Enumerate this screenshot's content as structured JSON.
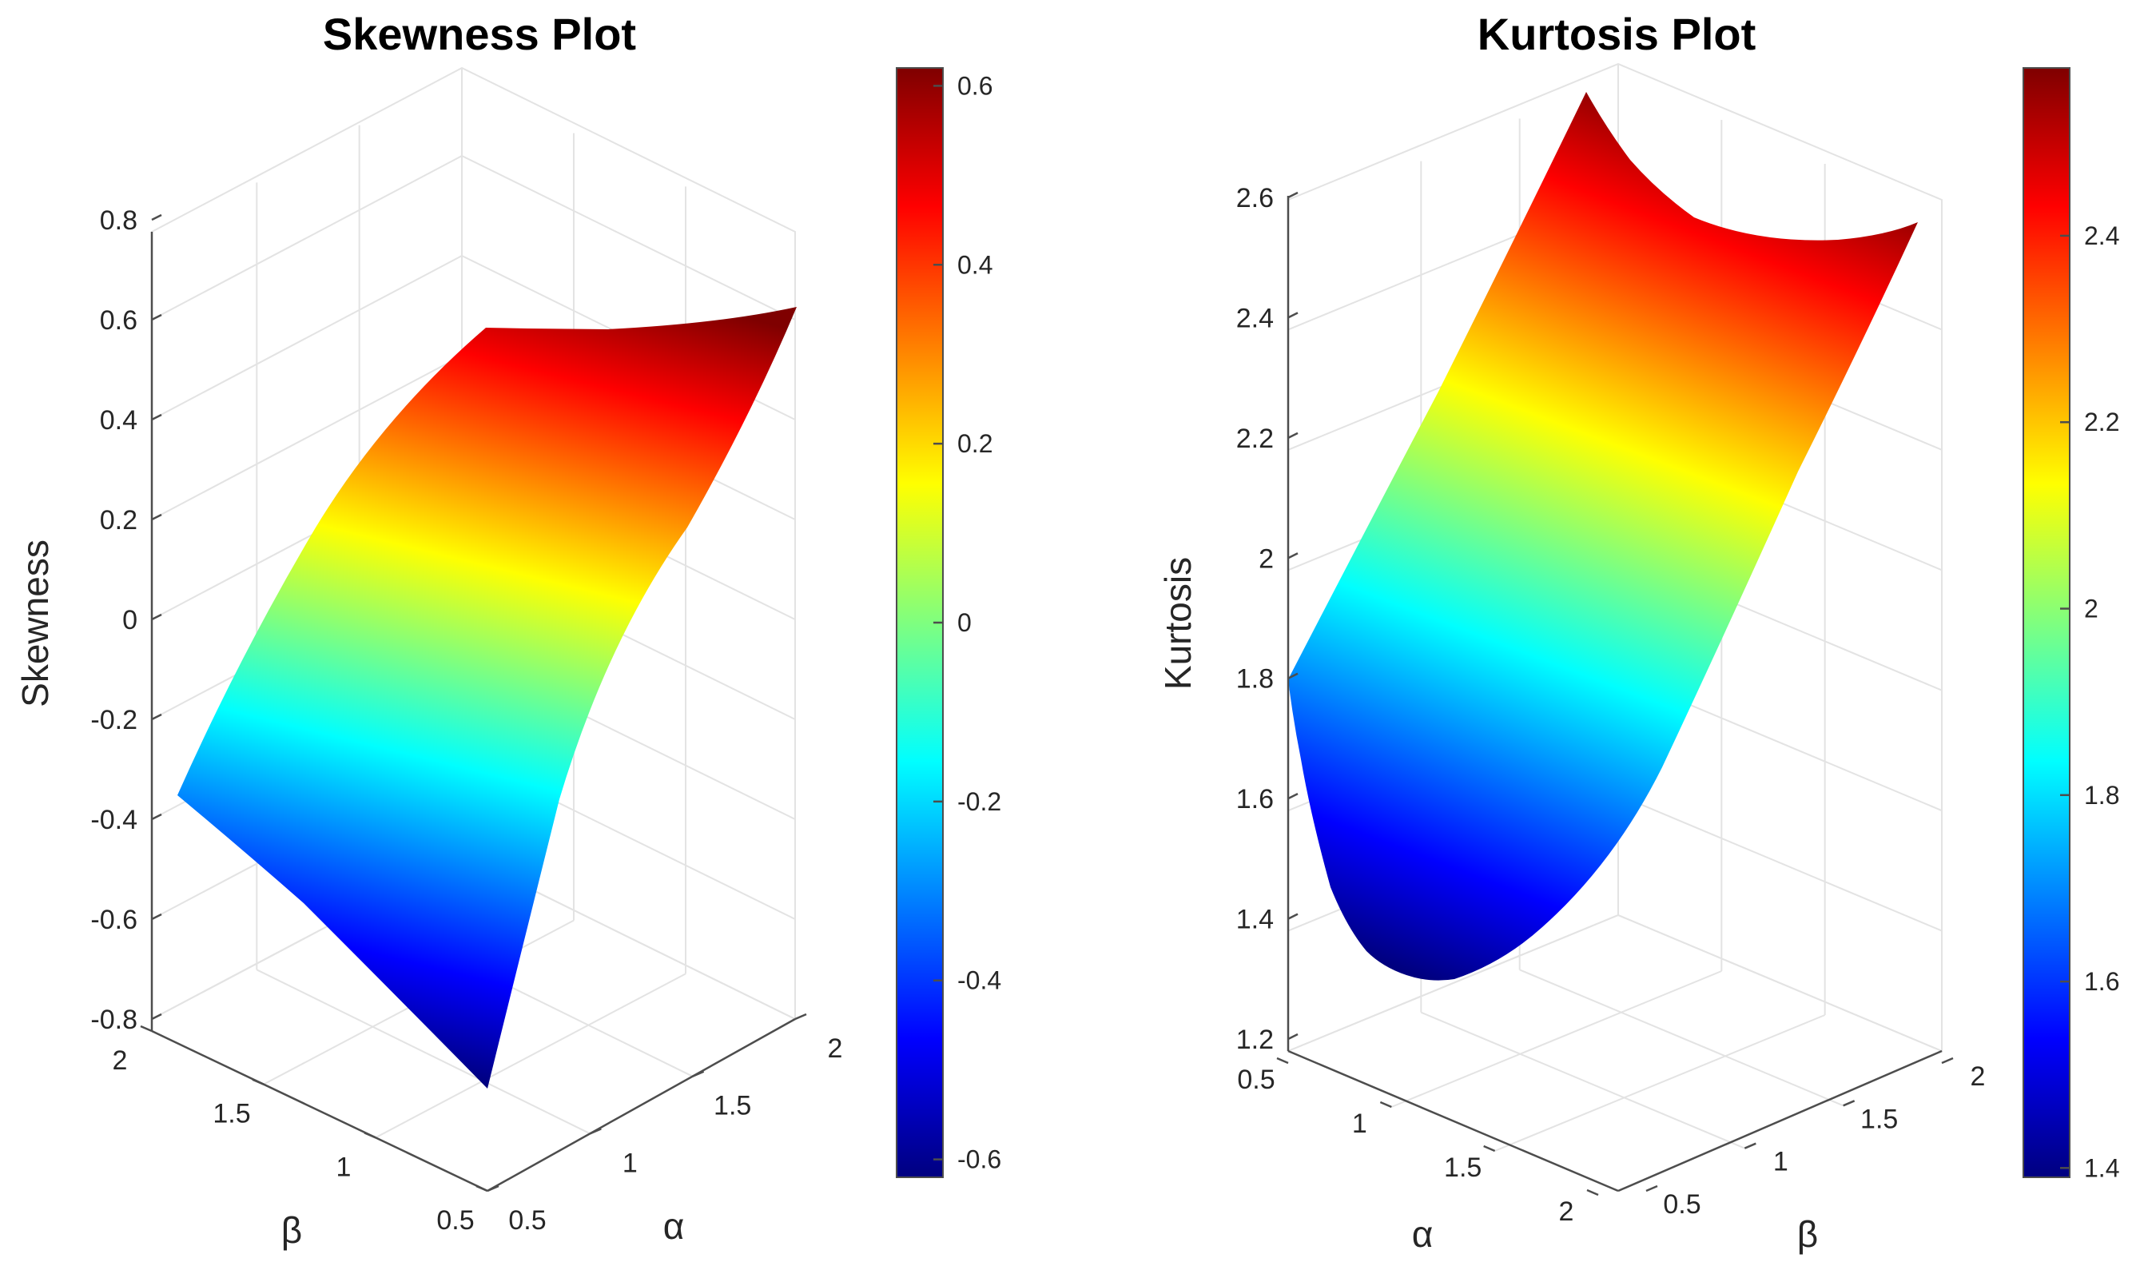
{
  "colors": {
    "jet": [
      "#00007f",
      "#0000ff",
      "#007fff",
      "#00ffff",
      "#7fff7f",
      "#ffff00",
      "#ff7f00",
      "#ff0000",
      "#7f0000"
    ],
    "axis": "#4d4d4d",
    "grid": "#e3e3e3"
  },
  "chart_data": [
    {
      "type": "surface",
      "title": "Skewness Plot",
      "xlabel": "α",
      "ylabel": "β",
      "zlabel": "Skewness",
      "xlim": [
        0.5,
        2
      ],
      "ylim": [
        0.5,
        2
      ],
      "zlim": [
        -0.8,
        0.8
      ],
      "x_ticks": [
        "0.5",
        "1",
        "1.5",
        "2"
      ],
      "y_ticks": [
        "0.5",
        "1",
        "1.5",
        "2"
      ],
      "z_ticks": [
        "-0.8",
        "-0.6",
        "-0.4",
        "-0.2",
        "0",
        "0.2",
        "0.4",
        "0.6",
        "0.8"
      ],
      "corners": [
        {
          "alpha": 0.5,
          "beta": 0.5,
          "value": -0.62
        },
        {
          "alpha": 2,
          "beta": 0.5,
          "value": 0.62
        },
        {
          "alpha": 0.5,
          "beta": 2,
          "value": -0.35
        },
        {
          "alpha": 2,
          "beta": 2,
          "value": 0.6
        }
      ],
      "colorbar": {
        "limits": [
          -0.62,
          0.62
        ],
        "ticks": [
          "-0.6",
          "-0.4",
          "-0.2",
          "0",
          "0.2",
          "0.4",
          "0.6"
        ]
      },
      "grid": true
    },
    {
      "type": "surface",
      "title": "Kurtosis Plot",
      "xlabel": "α",
      "ylabel": "β",
      "zlabel": "Kurtosis",
      "xlim": [
        0.5,
        2
      ],
      "ylim": [
        0.5,
        2
      ],
      "zlim": [
        1.2,
        2.6
      ],
      "x_ticks": [
        "0.5",
        "1",
        "1.5",
        "2"
      ],
      "y_ticks": [
        "0.5",
        "1",
        "1.5",
        "2"
      ],
      "z_ticks": [
        "1.2",
        "1.4",
        "1.6",
        "1.8",
        "2",
        "2.2",
        "2.4",
        "2.6"
      ],
      "corners": [
        {
          "alpha": 0.5,
          "beta": 0.5,
          "value": 1.8
        },
        {
          "alpha": 2,
          "beta": 0.5,
          "value": 1.8
        },
        {
          "alpha": 0.5,
          "beta": 2,
          "value": 2.5
        },
        {
          "alpha": 2,
          "beta": 2,
          "value": 2.55
        }
      ],
      "minimum": {
        "alpha": 1.25,
        "beta": 0.5,
        "value": 1.39
      },
      "colorbar": {
        "limits": [
          1.39,
          2.58
        ],
        "ticks": [
          "1.4",
          "1.6",
          "1.8",
          "2",
          "2.2",
          "2.4"
        ]
      },
      "grid": true
    }
  ]
}
